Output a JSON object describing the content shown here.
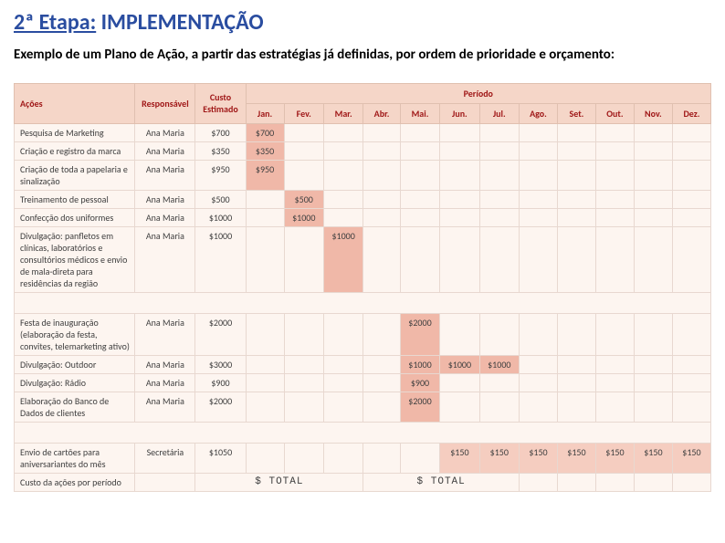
{
  "title_etapa": "2ª Etapa:",
  "title_rest": " IMPLEMENTAÇÃO",
  "subtitle": "Exemplo de um Plano de Ação, a partir das estratégias já definidas, por ordem de prioridade e orçamento:",
  "headers": {
    "acoes": "Ações",
    "responsavel": "Responsável",
    "custo": "Custo Estimado",
    "periodo": "Período",
    "months": [
      "Jan.",
      "Fev.",
      "Mar.",
      "Abr.",
      "Mai.",
      "Jun.",
      "Jul.",
      "Ago.",
      "Set.",
      "Out.",
      "Nov.",
      "Dez."
    ]
  },
  "rows": [
    {
      "acao": "Pesquisa de Marketing",
      "resp": "Ana Maria",
      "custo": "$700",
      "cells": [
        "$700",
        "",
        "",
        "",
        "",
        "",
        "",
        "",
        "",
        "",
        "",
        ""
      ],
      "hl": [
        0
      ]
    },
    {
      "acao": "Criação e registro da marca",
      "resp": "Ana Maria",
      "custo": "$350",
      "cells": [
        "$350",
        "",
        "",
        "",
        "",
        "",
        "",
        "",
        "",
        "",
        "",
        ""
      ],
      "hl": [
        0
      ]
    },
    {
      "acao": "Criação de toda a papelaria e sinalização",
      "resp": "Ana Maria",
      "custo": "$950",
      "cells": [
        "$950",
        "",
        "",
        "",
        "",
        "",
        "",
        "",
        "",
        "",
        "",
        ""
      ],
      "hl": [
        0
      ]
    },
    {
      "acao": "Treinamento de pessoal",
      "resp": "Ana Maria",
      "custo": "$500",
      "cells": [
        "",
        "$500",
        "",
        "",
        "",
        "",
        "",
        "",
        "",
        "",
        "",
        ""
      ],
      "hl": [
        1
      ]
    },
    {
      "acao": "Confecção dos uniformes",
      "resp": "Ana Maria",
      "custo": "$1000",
      "cells": [
        "",
        "$1000",
        "",
        "",
        "",
        "",
        "",
        "",
        "",
        "",
        "",
        ""
      ],
      "hl": [
        1
      ]
    },
    {
      "acao": "Divulgação: panfletos em clínicas, laboratórios e consultórios médicos e envio de mala-direta para residências da região",
      "resp": "Ana Maria",
      "custo": "$1000",
      "cells": [
        "",
        "",
        "$1000",
        "",
        "",
        "",
        "",
        "",
        "",
        "",
        "",
        ""
      ],
      "hl": [
        2
      ]
    },
    {
      "acao": "Festa de inauguração (elaboração da festa, convites, telemarketing ativo)",
      "resp": "Ana Maria",
      "custo": "$2000",
      "cells": [
        "",
        "",
        "",
        "",
        "$2000",
        "",
        "",
        "",
        "",
        "",
        "",
        ""
      ],
      "hl": [
        4
      ]
    },
    {
      "acao": "Divulgação: Outdoor",
      "resp": "Ana Maria",
      "custo": "$3000",
      "cells": [
        "",
        "",
        "",
        "",
        "$1000",
        "$1000",
        "$1000",
        "",
        "",
        "",
        "",
        ""
      ],
      "hl": [
        4,
        5,
        6
      ]
    },
    {
      "acao": "Divulgação: Rádio",
      "resp": "Ana Maria",
      "custo": "$900",
      "cells": [
        "",
        "",
        "",
        "",
        "$900",
        "",
        "",
        "",
        "",
        "",
        "",
        ""
      ],
      "hl": [
        4
      ]
    },
    {
      "acao": "Elaboração do Banco de Dados de clientes",
      "resp": "Ana Maria",
      "custo": "$2000",
      "cells": [
        "",
        "",
        "",
        "",
        "$2000",
        "",
        "",
        "",
        "",
        "",
        "",
        ""
      ],
      "hl": [
        4
      ]
    },
    {
      "acao": "Envio de cartões para aniversariantes do mês",
      "resp": "Secretária",
      "custo": "$1050",
      "cells": [
        "",
        "",
        "",
        "",
        "",
        "$150",
        "$150",
        "$150",
        "$150",
        "$150",
        "$150",
        "$150"
      ],
      "hl": [
        5,
        6,
        7,
        8,
        9,
        10,
        11
      ]
    }
  ],
  "footer": {
    "label": "Custo da ações por período",
    "total1": "$ TOTAL",
    "total2": "$ TOTAL"
  },
  "colors": {
    "title": "#2a4da0",
    "header_bg": "#f5d6c8",
    "header_text": "#a01818",
    "cell_bg": "#fdf5f0",
    "highlight_bg": "#f0b8a8"
  }
}
